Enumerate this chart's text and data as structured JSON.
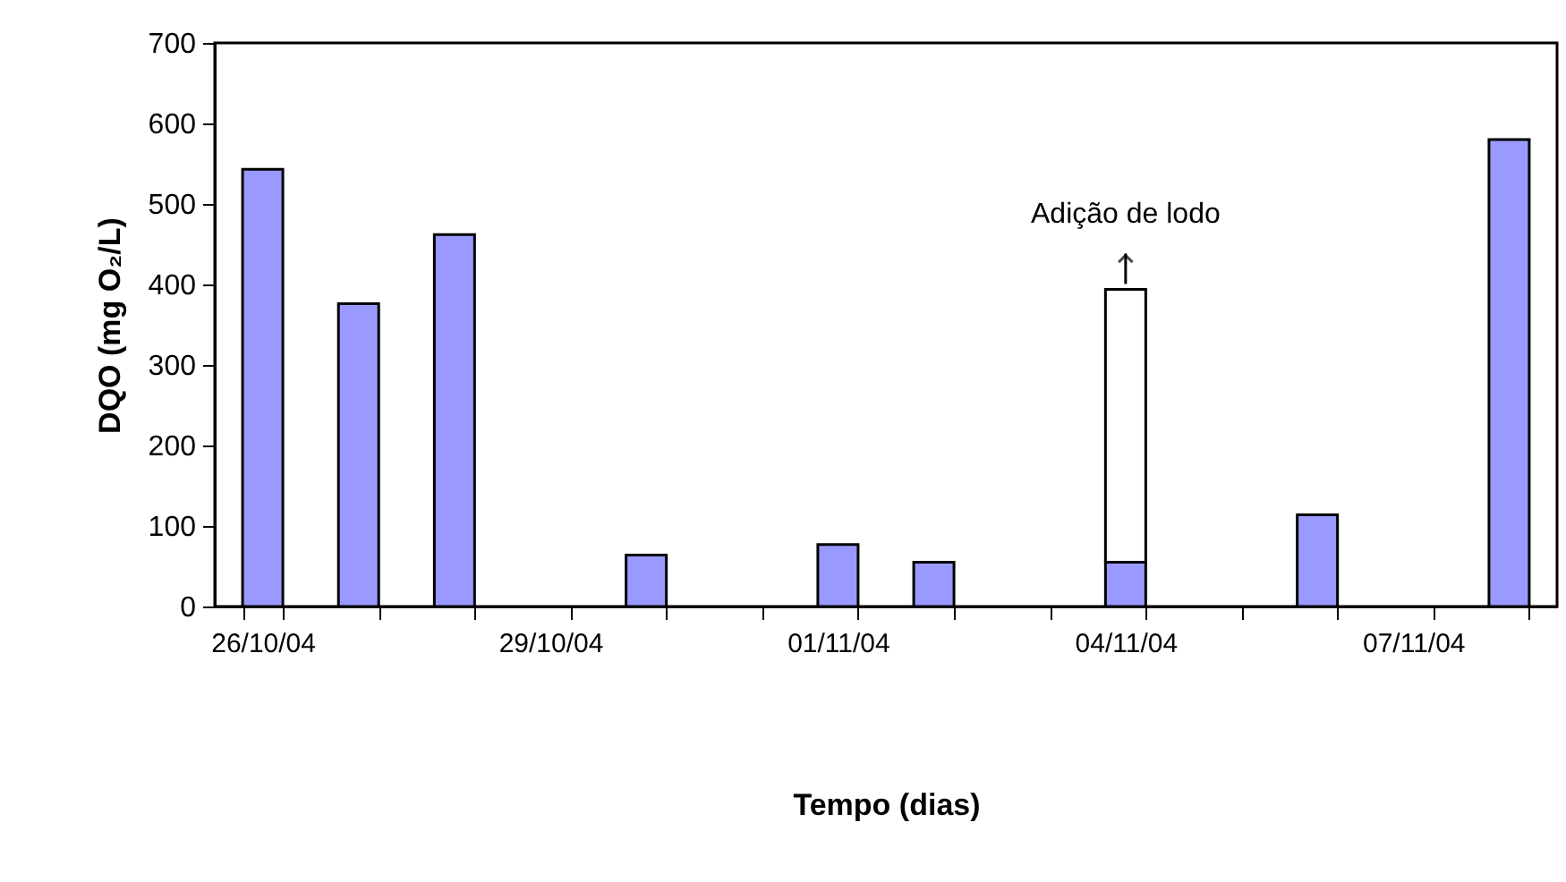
{
  "chart_data": {
    "type": "bar",
    "xlabel": "Tempo (dias)",
    "ylabel": "DQO (mg O₂/L)",
    "categories": [
      "26/10/04",
      null,
      null,
      "29/10/04",
      null,
      null,
      "01/11/04",
      null,
      null,
      "04/11/04",
      null,
      null,
      "07/11/04",
      null
    ],
    "series": [
      {
        "color": "#9999ff",
        "values": [
          543,
          376,
          462,
          null,
          64,
          null,
          77,
          55,
          null,
          55,
          null,
          114,
          null,
          580
        ]
      },
      {
        "color": "#ffffff",
        "values": [
          null,
          null,
          null,
          null,
          null,
          null,
          null,
          null,
          null,
          339,
          null,
          null,
          null,
          null
        ]
      }
    ],
    "stacked": true,
    "ylim": [
      0,
      700
    ],
    "yticks": [
      0,
      100,
      200,
      300,
      400,
      500,
      600,
      700
    ],
    "annotations": [
      {
        "text": "Adição de lodo",
        "x": "04/11/04",
        "y": 394
      }
    ]
  }
}
